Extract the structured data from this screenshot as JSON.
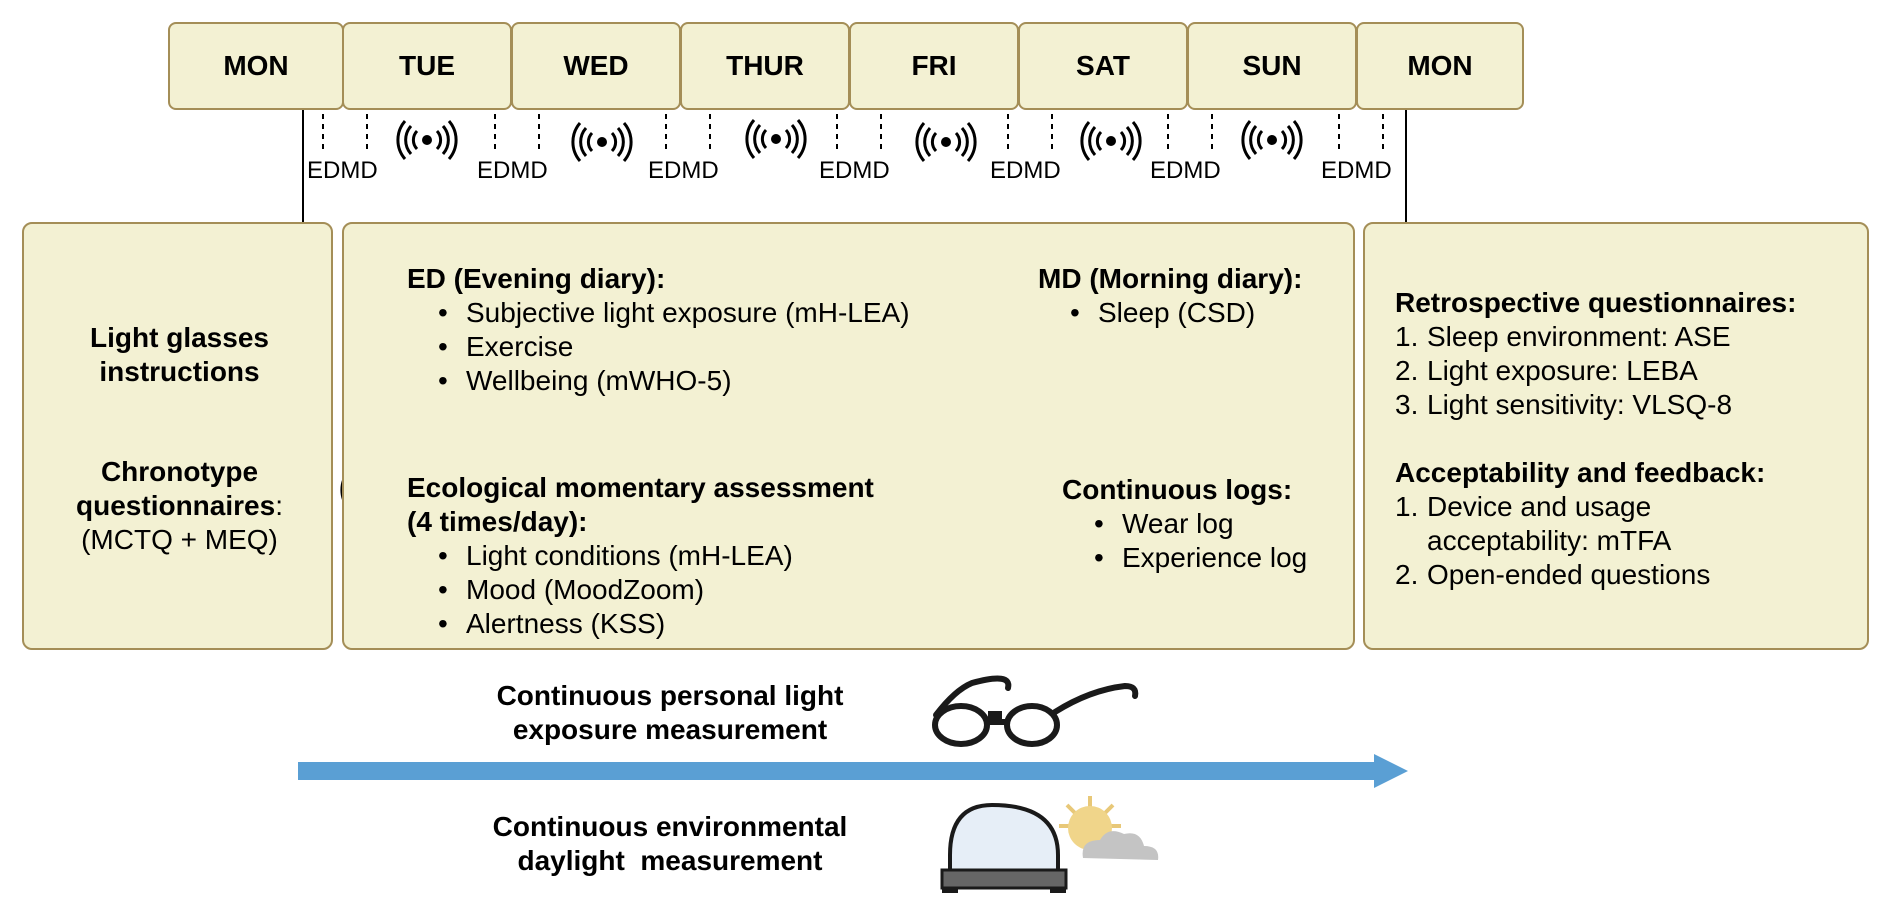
{
  "days": [
    "MON",
    "TUE",
    "WED",
    "THUR",
    "FRI",
    "SAT",
    "SUN",
    "MON"
  ],
  "diary_markers": {
    "ed": "ED",
    "md": "MD"
  },
  "left_box": {
    "title": "Light glasses instructions",
    "chrono_bold": "Chronotype questionnaires",
    "chrono_colon": ":",
    "chrono_detail": "(MCTQ + MEQ)"
  },
  "middle_box": {
    "ed_title": "ED (Evening diary):",
    "ed_items": [
      "Subjective light exposure (mH-LEA)",
      "Exercise",
      "Wellbeing (mWHO-5)"
    ],
    "md_title": "MD (Morning diary):",
    "md_items": [
      "Sleep (CSD)"
    ],
    "ema_title_1": "Ecological momentary assessment",
    "ema_title_2": "(4 times/day):",
    "ema_items": [
      "Light conditions (mH-LEA)",
      "Mood (MoodZoom)",
      "Alertness (KSS)"
    ],
    "logs_title": "Continuous logs:",
    "logs_items": [
      "Wear log",
      "Experience log"
    ]
  },
  "right_box": {
    "retro_title": "Retrospective questionnaires:",
    "retro_items": [
      "Sleep environment: ASE",
      "Light exposure: LEBA",
      "Light sensitivity: VLSQ-8"
    ],
    "accept_title": "Acceptability and feedback:",
    "accept_items": [
      "Device and usage acceptability: mTFA",
      "Open-ended questions"
    ]
  },
  "bottom": {
    "personal_1": "Continuous personal light",
    "personal_2": "exposure measurement",
    "env_1": "Continuous environmental",
    "env_2": "daylight  measurement"
  },
  "colors": {
    "box_fill": "#f3f1d3",
    "box_border": "#a48e57",
    "arrow": "#5a9fd4"
  },
  "icons": [
    "wireless-signal-icon",
    "glasses-icon",
    "daylight-sensor-icon",
    "sun-cloud-icon"
  ]
}
